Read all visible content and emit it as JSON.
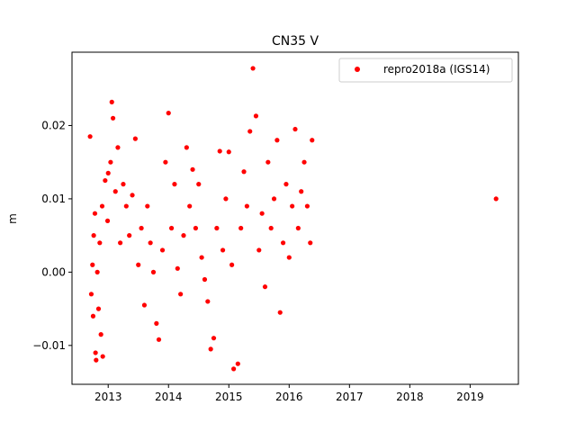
{
  "chart_data": {
    "type": "scatter",
    "title": "CN35 V",
    "ylabel": "m",
    "xlabel": "",
    "xlim": [
      2012.4,
      2019.8
    ],
    "ylim": [
      -0.0153,
      0.03
    ],
    "x_ticks": [
      2013,
      2014,
      2015,
      2016,
      2017,
      2018,
      2019
    ],
    "x_tick_labels": [
      "2013",
      "2014",
      "2015",
      "2016",
      "2017",
      "2018",
      "2019"
    ],
    "y_ticks": [
      -0.01,
      0.0,
      0.01,
      0.02
    ],
    "y_tick_labels": [
      "−0.01",
      "0.00",
      "0.01",
      "0.02"
    ],
    "grid": false,
    "legend": {
      "position": "top-right",
      "entries": [
        "repro2018a (IGS14)"
      ]
    },
    "series": [
      {
        "name": "repro2018a (IGS14)",
        "color": "#ff0000",
        "marker": "circle",
        "points": [
          [
            2012.7,
            0.0185
          ],
          [
            2012.72,
            -0.003
          ],
          [
            2012.74,
            0.001
          ],
          [
            2012.75,
            -0.006
          ],
          [
            2012.76,
            0.005
          ],
          [
            2012.78,
            0.008
          ],
          [
            2012.79,
            -0.011
          ],
          [
            2012.8,
            -0.012
          ],
          [
            2012.82,
            0.0
          ],
          [
            2012.84,
            -0.005
          ],
          [
            2012.86,
            0.004
          ],
          [
            2012.88,
            -0.0085
          ],
          [
            2012.9,
            0.009
          ],
          [
            2012.91,
            -0.0115
          ],
          [
            2012.95,
            0.0125
          ],
          [
            2012.99,
            0.007
          ],
          [
            2013.0,
            0.0135
          ],
          [
            2013.04,
            0.015
          ],
          [
            2013.06,
            0.0232
          ],
          [
            2013.08,
            0.021
          ],
          [
            2013.12,
            0.011
          ],
          [
            2013.16,
            0.017
          ],
          [
            2013.2,
            0.004
          ],
          [
            2013.25,
            0.012
          ],
          [
            2013.3,
            0.009
          ],
          [
            2013.35,
            0.005
          ],
          [
            2013.4,
            0.0105
          ],
          [
            2013.45,
            0.0182
          ],
          [
            2013.5,
            0.001
          ],
          [
            2013.55,
            0.006
          ],
          [
            2013.6,
            -0.0045
          ],
          [
            2013.65,
            0.009
          ],
          [
            2013.7,
            0.004
          ],
          [
            2013.75,
            0.0
          ],
          [
            2013.8,
            -0.007
          ],
          [
            2013.84,
            -0.0092
          ],
          [
            2013.9,
            0.003
          ],
          [
            2013.95,
            0.015
          ],
          [
            2014.0,
            0.0217
          ],
          [
            2014.05,
            0.006
          ],
          [
            2014.1,
            0.012
          ],
          [
            2014.15,
            0.0005
          ],
          [
            2014.2,
            -0.003
          ],
          [
            2014.25,
            0.005
          ],
          [
            2014.3,
            0.017
          ],
          [
            2014.35,
            0.009
          ],
          [
            2014.4,
            0.014
          ],
          [
            2014.45,
            0.006
          ],
          [
            2014.5,
            0.012
          ],
          [
            2014.55,
            0.002
          ],
          [
            2014.6,
            -0.001
          ],
          [
            2014.65,
            -0.004
          ],
          [
            2014.7,
            -0.0105
          ],
          [
            2014.75,
            -0.009
          ],
          [
            2014.8,
            0.006
          ],
          [
            2014.85,
            0.0165
          ],
          [
            2014.9,
            0.003
          ],
          [
            2014.95,
            0.01
          ],
          [
            2015.0,
            0.0164
          ],
          [
            2015.05,
            0.001
          ],
          [
            2015.08,
            -0.0132
          ],
          [
            2015.15,
            -0.0125
          ],
          [
            2015.2,
            0.006
          ],
          [
            2015.25,
            0.0137
          ],
          [
            2015.3,
            0.009
          ],
          [
            2015.35,
            0.0192
          ],
          [
            2015.4,
            0.0278
          ],
          [
            2015.45,
            0.0213
          ],
          [
            2015.5,
            0.003
          ],
          [
            2015.55,
            0.008
          ],
          [
            2015.6,
            -0.002
          ],
          [
            2015.65,
            0.015
          ],
          [
            2015.7,
            0.006
          ],
          [
            2015.75,
            0.01
          ],
          [
            2015.8,
            0.018
          ],
          [
            2015.85,
            -0.0055
          ],
          [
            2015.9,
            0.004
          ],
          [
            2015.95,
            0.012
          ],
          [
            2016.0,
            0.002
          ],
          [
            2016.05,
            0.009
          ],
          [
            2016.1,
            0.0195
          ],
          [
            2016.15,
            0.006
          ],
          [
            2016.2,
            0.011
          ],
          [
            2016.25,
            0.015
          ],
          [
            2016.3,
            0.009
          ],
          [
            2016.35,
            0.004
          ],
          [
            2016.38,
            0.018
          ],
          [
            2019.43,
            0.01
          ]
        ]
      }
    ]
  }
}
